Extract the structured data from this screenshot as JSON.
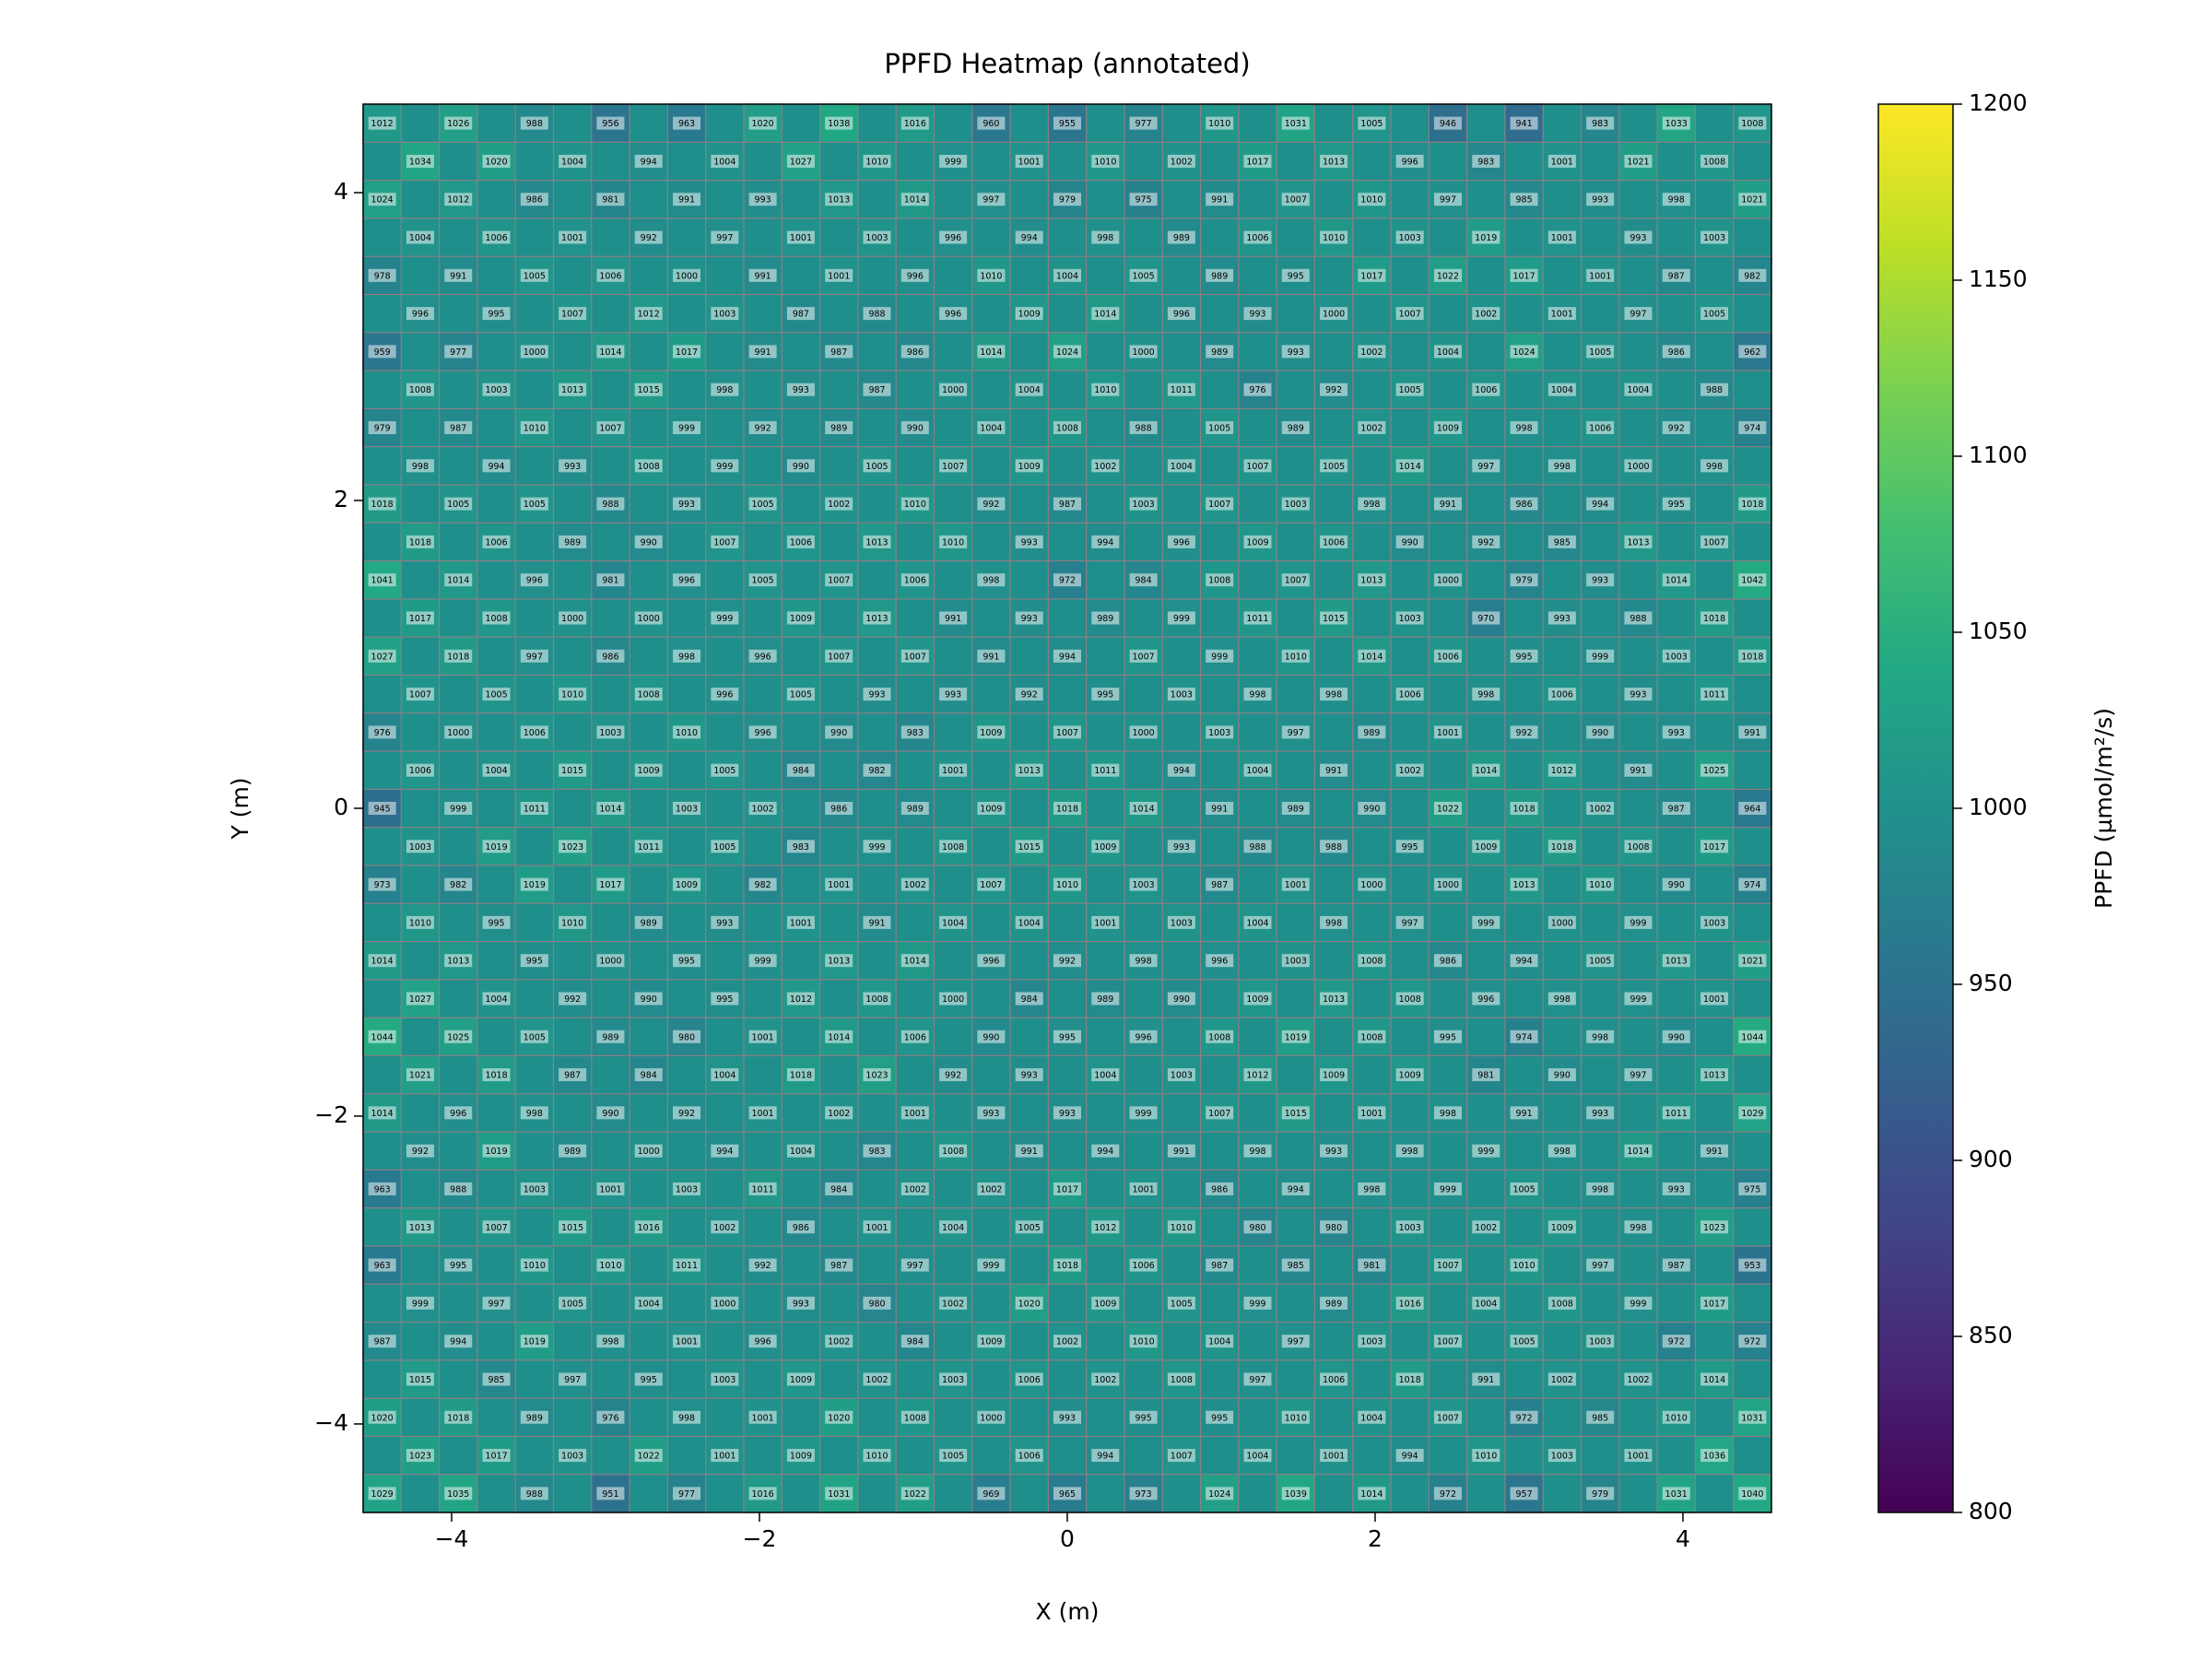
{
  "chart_data": {
    "type": "heatmap",
    "title": "PPFD Heatmap (annotated)",
    "xlabel": "X (m)",
    "ylabel": "Y (m)",
    "colorbar_label": "PPFD (µmol/m²/s)",
    "xlim": [
      -4.575,
      4.575
    ],
    "ylim": [
      -4.575,
      4.575
    ],
    "xticks": [
      {
        "value": -4,
        "label": "−4"
      },
      {
        "value": -2,
        "label": "−2"
      },
      0,
      2,
      4
    ],
    "yticks": [
      {
        "value": -4,
        "label": "−4"
      },
      {
        "value": -2,
        "label": "−2"
      },
      0,
      2,
      4
    ],
    "clim": [
      800,
      1200
    ],
    "cticks": [
      800,
      850,
      900,
      950,
      1000,
      1050,
      1100,
      1150,
      1200
    ],
    "colormap": "viridis",
    "rows": [
      [
        1012,
        1026,
        988,
        956,
        963,
        1020,
        1038,
        1016,
        960,
        955,
        977,
        1010,
        1031,
        1005,
        946,
        941,
        983,
        1033,
        1008
      ],
      [
        1034,
        1020,
        1004,
        994,
        1004,
        1027,
        1010,
        999,
        1001,
        1010,
        1002,
        1017,
        1013,
        996,
        983,
        1001,
        1021,
        1008
      ],
      [
        1024,
        1012,
        986,
        981,
        991,
        993,
        1013,
        1014,
        997,
        979,
        975,
        991,
        1007,
        1010,
        997,
        985,
        993,
        998,
        1021
      ],
      [
        1004,
        1006,
        1001,
        992,
        997,
        1001,
        1003,
        996,
        994,
        998,
        989,
        1006,
        1010,
        1003,
        1019,
        1001,
        993,
        1003
      ],
      [
        978,
        991,
        1005,
        1006,
        1000,
        991,
        1001,
        996,
        1010,
        1004,
        1005,
        989,
        995,
        1017,
        1022,
        1017,
        1001,
        987,
        982
      ],
      [
        996,
        995,
        1007,
        1012,
        1003,
        987,
        988,
        996,
        1009,
        1014,
        996,
        993,
        1000,
        1007,
        1002,
        1001,
        997,
        1005
      ],
      [
        959,
        977,
        1000,
        1014,
        1017,
        991,
        987,
        986,
        1014,
        1024,
        1000,
        989,
        993,
        1002,
        1004,
        1024,
        1005,
        986,
        962
      ],
      [
        1008,
        1003,
        1013,
        1015,
        998,
        993,
        987,
        1000,
        1004,
        1010,
        1011,
        976,
        992,
        1005,
        1006,
        1004,
        1004,
        988
      ],
      [
        979,
        987,
        1010,
        1007,
        999,
        992,
        989,
        990,
        1004,
        1008,
        988,
        1005,
        989,
        1002,
        1009,
        998,
        1006,
        992,
        974
      ],
      [
        998,
        994,
        993,
        1008,
        999,
        990,
        1005,
        1007,
        1009,
        1002,
        1004,
        1007,
        1005,
        1014,
        997,
        998,
        1000,
        998
      ],
      [
        1018,
        1005,
        1005,
        988,
        993,
        1005,
        1002,
        1010,
        992,
        987,
        1003,
        1007,
        1003,
        998,
        991,
        986,
        994,
        995,
        1018
      ],
      [
        1018,
        1006,
        989,
        990,
        1007,
        1006,
        1013,
        1010,
        993,
        994,
        996,
        1009,
        1006,
        990,
        992,
        985,
        1013,
        1007
      ],
      [
        1041,
        1014,
        996,
        981,
        996,
        1005,
        1007,
        1006,
        998,
        972,
        984,
        1008,
        1007,
        1013,
        1000,
        979,
        993,
        1014,
        1042
      ],
      [
        1017,
        1008,
        1000,
        1000,
        999,
        1009,
        1013,
        991,
        993,
        989,
        999,
        1011,
        1015,
        1003,
        970,
        993,
        988,
        1018
      ],
      [
        1027,
        1018,
        997,
        986,
        998,
        996,
        1007,
        1007,
        991,
        994,
        1007,
        999,
        1010,
        1014,
        1006,
        995,
        999,
        1003,
        1018
      ],
      [
        1007,
        1005,
        1010,
        1008,
        996,
        1005,
        993,
        993,
        992,
        995,
        1003,
        998,
        998,
        1006,
        998,
        1006,
        993,
        1011
      ],
      [
        976,
        1000,
        1006,
        1003,
        1010,
        996,
        990,
        983,
        1009,
        1007,
        1000,
        1003,
        997,
        989,
        1001,
        992,
        990,
        993,
        991
      ],
      [
        1006,
        1004,
        1015,
        1009,
        1005,
        984,
        982,
        1001,
        1013,
        1011,
        994,
        1004,
        991,
        1002,
        1014,
        1012,
        991,
        1025
      ],
      [
        945,
        999,
        1011,
        1014,
        1003,
        1002,
        986,
        989,
        1009,
        1018,
        1014,
        991,
        989,
        990,
        1022,
        1018,
        1002,
        987,
        964
      ],
      [
        1003,
        1019,
        1023,
        1011,
        1005,
        983,
        999,
        1008,
        1015,
        1009,
        993,
        988,
        988,
        995,
        1009,
        1018,
        1008,
        1017
      ],
      [
        973,
        982,
        1019,
        1017,
        1009,
        982,
        1001,
        1002,
        1007,
        1010,
        1003,
        987,
        1001,
        1000,
        1000,
        1013,
        1010,
        990,
        974
      ],
      [
        1010,
        995,
        1010,
        989,
        993,
        1001,
        991,
        1004,
        1004,
        1001,
        1003,
        1004,
        998,
        997,
        999,
        1000,
        999,
        1003
      ],
      [
        1014,
        1013,
        995,
        1000,
        995,
        999,
        1013,
        1014,
        996,
        992,
        998,
        996,
        1003,
        1008,
        986,
        994,
        1005,
        1013,
        1021
      ],
      [
        1027,
        1004,
        992,
        990,
        995,
        1012,
        1008,
        1000,
        984,
        989,
        990,
        1009,
        1013,
        1008,
        996,
        998,
        999,
        1001
      ],
      [
        1044,
        1025,
        1005,
        989,
        980,
        1001,
        1014,
        1006,
        990,
        995,
        996,
        1008,
        1019,
        1008,
        995,
        974,
        998,
        990,
        1044
      ],
      [
        1021,
        1018,
        987,
        984,
        1004,
        1018,
        1023,
        992,
        993,
        1004,
        1003,
        1012,
        1009,
        1009,
        981,
        990,
        997,
        1013
      ],
      [
        1014,
        996,
        998,
        990,
        992,
        1001,
        1002,
        1001,
        993,
        993,
        999,
        1007,
        1015,
        1001,
        998,
        991,
        993,
        1011,
        1029
      ],
      [
        992,
        1019,
        989,
        1000,
        994,
        1004,
        983,
        1008,
        991,
        994,
        991,
        998,
        993,
        998,
        999,
        998,
        1014,
        991
      ],
      [
        963,
        988,
        1003,
        1001,
        1003,
        1011,
        984,
        1002,
        1002,
        1017,
        1001,
        986,
        994,
        998,
        999,
        1005,
        998,
        993,
        975
      ],
      [
        1013,
        1007,
        1015,
        1016,
        1002,
        986,
        1001,
        1004,
        1005,
        1012,
        1010,
        980,
        980,
        1003,
        1002,
        1009,
        998,
        1023
      ],
      [
        963,
        995,
        1010,
        1010,
        1011,
        992,
        987,
        997,
        999,
        1018,
        1006,
        987,
        985,
        981,
        1007,
        1010,
        997,
        987,
        953
      ],
      [
        999,
        997,
        1005,
        1004,
        1000,
        993,
        980,
        1002,
        1020,
        1009,
        1005,
        999,
        989,
        1016,
        1004,
        1008,
        999,
        1017
      ],
      [
        987,
        994,
        1019,
        998,
        1001,
        996,
        1002,
        984,
        1009,
        1002,
        1010,
        1004,
        997,
        1003,
        1007,
        1005,
        1003,
        972,
        972
      ],
      [
        1015,
        985,
        997,
        995,
        1003,
        1009,
        1002,
        1003,
        1006,
        1002,
        1008,
        997,
        1006,
        1018,
        991,
        1002,
        1002,
        1014
      ],
      [
        1020,
        1018,
        989,
        976,
        998,
        1001,
        1020,
        1008,
        1000,
        993,
        995,
        995,
        1010,
        1004,
        1007,
        972,
        985,
        1010,
        1031
      ],
      [
        1023,
        1017,
        1003,
        1022,
        1001,
        1009,
        1010,
        1005,
        1006,
        994,
        1007,
        1004,
        1001,
        994,
        1010,
        1003,
        1001,
        1036
      ],
      [
        1029,
        1035,
        988,
        951,
        977,
        1016,
        1031,
        1022,
        969,
        965,
        973,
        1024,
        1039,
        1014,
        972,
        957,
        979,
        1031,
        1040
      ]
    ]
  }
}
